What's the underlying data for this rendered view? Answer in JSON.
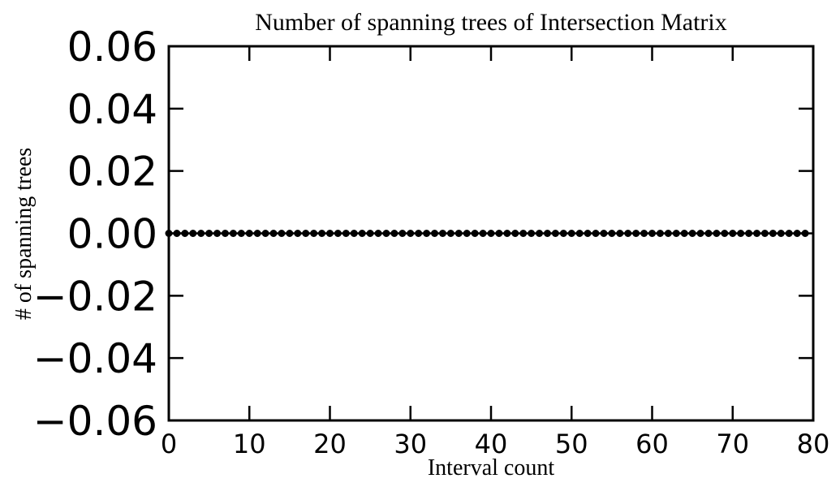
{
  "chart_data": {
    "type": "line",
    "title": "Number of spanning trees of Intersection Matrix",
    "xlabel": "Interval count",
    "ylabel": "# of spanning trees",
    "xlim": [
      0,
      80
    ],
    "ylim": [
      -0.06,
      0.06
    ],
    "xticks": [
      0,
      10,
      20,
      30,
      40,
      50,
      60,
      70,
      80
    ],
    "xtick_labels": [
      "0",
      "10",
      "20",
      "30",
      "40",
      "50",
      "60",
      "70",
      "80"
    ],
    "yticks": [
      -0.06,
      -0.04,
      -0.02,
      0.0,
      0.02,
      0.04,
      0.06
    ],
    "ytick_labels": [
      "−0.06",
      "−0.04",
      "−0.02",
      "0.00",
      "0.02",
      "0.04",
      "0.06"
    ],
    "grid": false,
    "series": [
      {
        "color": "#000000",
        "marker": "circle",
        "x": [
          0,
          1,
          2,
          3,
          4,
          5,
          6,
          7,
          8,
          9,
          10,
          11,
          12,
          13,
          14,
          15,
          16,
          17,
          18,
          19,
          20,
          21,
          22,
          23,
          24,
          25,
          26,
          27,
          28,
          29,
          30,
          31,
          32,
          33,
          34,
          35,
          36,
          37,
          38,
          39,
          40,
          41,
          42,
          43,
          44,
          45,
          46,
          47,
          48,
          49,
          50,
          51,
          52,
          53,
          54,
          55,
          56,
          57,
          58,
          59,
          60,
          61,
          62,
          63,
          64,
          65,
          66,
          67,
          68,
          69,
          70,
          71,
          72,
          73,
          74,
          75,
          76,
          77,
          78,
          79
        ],
        "y": [
          0,
          0,
          0,
          0,
          0,
          0,
          0,
          0,
          0,
          0,
          0,
          0,
          0,
          0,
          0,
          0,
          0,
          0,
          0,
          0,
          0,
          0,
          0,
          0,
          0,
          0,
          0,
          0,
          0,
          0,
          0,
          0,
          0,
          0,
          0,
          0,
          0,
          0,
          0,
          0,
          0,
          0,
          0,
          0,
          0,
          0,
          0,
          0,
          0,
          0,
          0,
          0,
          0,
          0,
          0,
          0,
          0,
          0,
          0,
          0,
          0,
          0,
          0,
          0,
          0,
          0,
          0,
          0,
          0,
          0,
          0,
          0,
          0,
          0,
          0,
          0,
          0,
          0,
          0,
          0
        ]
      }
    ]
  }
}
